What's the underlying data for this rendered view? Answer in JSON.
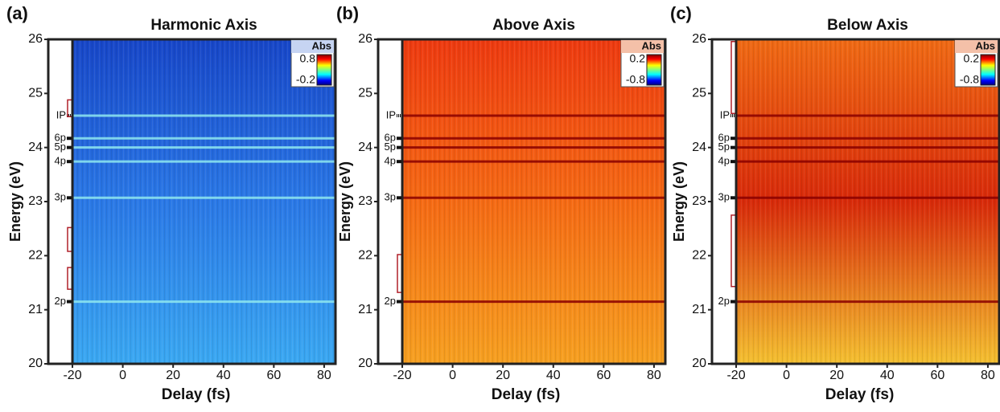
{
  "chart_data": [
    {
      "type": "heatmap",
      "panel": "(a)",
      "title": "Harmonic Axis",
      "xlabel": "Delay (fs)",
      "ylabel": "Energy (eV)",
      "xlim": [
        -29.6,
        84.5
      ],
      "xticks": [
        -20,
        0,
        20,
        40,
        60,
        80
      ],
      "ylim": [
        20,
        26
      ],
      "yticks": [
        20,
        21,
        22,
        23,
        24,
        25,
        26
      ],
      "colorbar": {
        "label": "Abs",
        "ticks": [
          0.8,
          -0.2
        ],
        "label_bg": "#c6d4f2"
      },
      "gradient": [
        "#1746c8",
        "#2a78e6",
        "#3aa8f2"
      ],
      "line_color": "#8fe8f0",
      "states": [
        {
          "label": "2p",
          "value": 21.15
        },
        {
          "label": "3p",
          "value": 23.07
        },
        {
          "label": "4p",
          "value": 23.74
        },
        {
          "label": "5p",
          "value": 24.0
        },
        {
          "label": "6p",
          "value": 24.17
        },
        {
          "label": "IP",
          "value": 24.59
        }
      ],
      "brackets": [
        [
          24.57,
          24.88
        ],
        [
          22.08,
          22.52
        ],
        [
          21.38,
          21.78
        ]
      ]
    },
    {
      "type": "heatmap",
      "panel": "(b)",
      "title": "Above Axis",
      "xlabel": "Delay (fs)",
      "ylabel": "Energy (eV)",
      "xlim": [
        -29.6,
        84.5
      ],
      "xticks": [
        -20,
        0,
        20,
        40,
        60,
        80
      ],
      "ylim": [
        20,
        26
      ],
      "yticks": [
        20,
        21,
        22,
        23,
        24,
        25,
        26
      ],
      "colorbar": {
        "label": "Abs",
        "ticks": [
          0.2,
          -0.8
        ],
        "label_bg": "#f4c0a8"
      },
      "gradient": [
        "#ee3a10",
        "#f56a14",
        "#f6a020"
      ],
      "line_color": "#8a0000",
      "states": [
        {
          "label": "2p",
          "value": 21.15
        },
        {
          "label": "3p",
          "value": 23.07
        },
        {
          "label": "4p",
          "value": 23.74
        },
        {
          "label": "5p",
          "value": 24.0
        },
        {
          "label": "6p",
          "value": 24.17
        },
        {
          "label": "IP",
          "value": 24.59
        }
      ],
      "brackets": [
        [
          21.32,
          22.02
        ]
      ]
    },
    {
      "type": "heatmap",
      "panel": "(c)",
      "title": "Below Axis",
      "xlabel": "Delay (fs)",
      "ylabel": "Energy (eV)",
      "xlim": [
        -29.6,
        84.5
      ],
      "xticks": [
        -20,
        0,
        20,
        40,
        60,
        80
      ],
      "ylim": [
        20,
        26
      ],
      "yticks": [
        20,
        21,
        22,
        23,
        24,
        25,
        26
      ],
      "colorbar": {
        "label": "Abs",
        "ticks": [
          0.2,
          -0.8
        ],
        "label_bg": "#f4c0a8"
      },
      "gradient": [
        "#f06a14",
        "#d82a0a",
        "#f4c030"
      ],
      "line_color": "#8a0000",
      "states": [
        {
          "label": "2p",
          "value": 21.15
        },
        {
          "label": "3p",
          "value": 23.07
        },
        {
          "label": "4p",
          "value": 23.74
        },
        {
          "label": "5p",
          "value": 24.0
        },
        {
          "label": "6p",
          "value": 24.17
        },
        {
          "label": "IP",
          "value": 24.59
        }
      ],
      "brackets": [
        [
          24.63,
          25.96
        ],
        [
          21.43,
          22.75
        ]
      ]
    }
  ]
}
